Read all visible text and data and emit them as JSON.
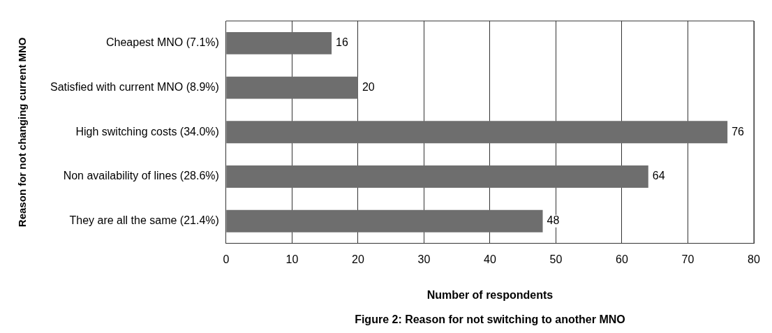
{
  "chart_data": {
    "type": "bar",
    "orientation": "horizontal",
    "categories": [
      "Cheapest MNO (7.1%)",
      "Satisfied with current MNO (8.9%)",
      "High switching costs (34.0%)",
      "Non availability of lines (28.6%)",
      "They are all the same (21.4%)"
    ],
    "values": [
      16,
      20,
      76,
      64,
      48
    ],
    "color": "#6e6e6e",
    "xlim": [
      0,
      80
    ],
    "xticks": [
      0,
      10,
      20,
      30,
      40,
      50,
      60,
      70,
      80
    ],
    "xlabel": "Number of respondents",
    "ylabel": "Reason for not changing current MNO",
    "annotations": [
      "Figure 2: Reason for not switching to another MNO"
    ],
    "data_labels": true,
    "grid": "x",
    "legend": false
  }
}
